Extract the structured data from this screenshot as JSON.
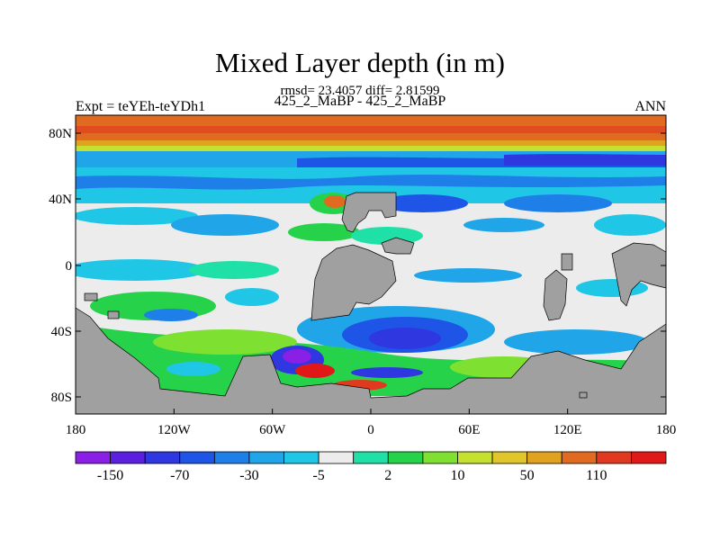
{
  "title": "Mixed Layer depth (in m)",
  "stats_line": "rmsd= 23.4057 diff= 2.81599",
  "subtitle": "425_2_MaBP - 425_2_MaBP",
  "left_label": "Expt = teYEh-teYDh1",
  "right_label": "ANN",
  "lat_labels": [
    "80N",
    "40N",
    "0",
    "40S",
    "80S"
  ],
  "lon_labels": [
    "180",
    "120W",
    "60W",
    "0",
    "60E",
    "120E",
    "180"
  ],
  "colorbar": {
    "colors": [
      "#8a1fe6",
      "#5b1fe0",
      "#2e37e0",
      "#1f55e6",
      "#1f7fe8",
      "#20a6e8",
      "#20c6e6",
      "#ececec",
      "#1fe0a6",
      "#26d24a",
      "#7ee030",
      "#c6e030",
      "#e0c62a",
      "#e0a21f",
      "#e06a1f",
      "#e0391f",
      "#e01818"
    ],
    "labels": [
      "-150",
      "-70",
      "-30",
      "-5",
      "2",
      "10",
      "50",
      "110"
    ]
  },
  "land_color": "#a0a0a0"
}
